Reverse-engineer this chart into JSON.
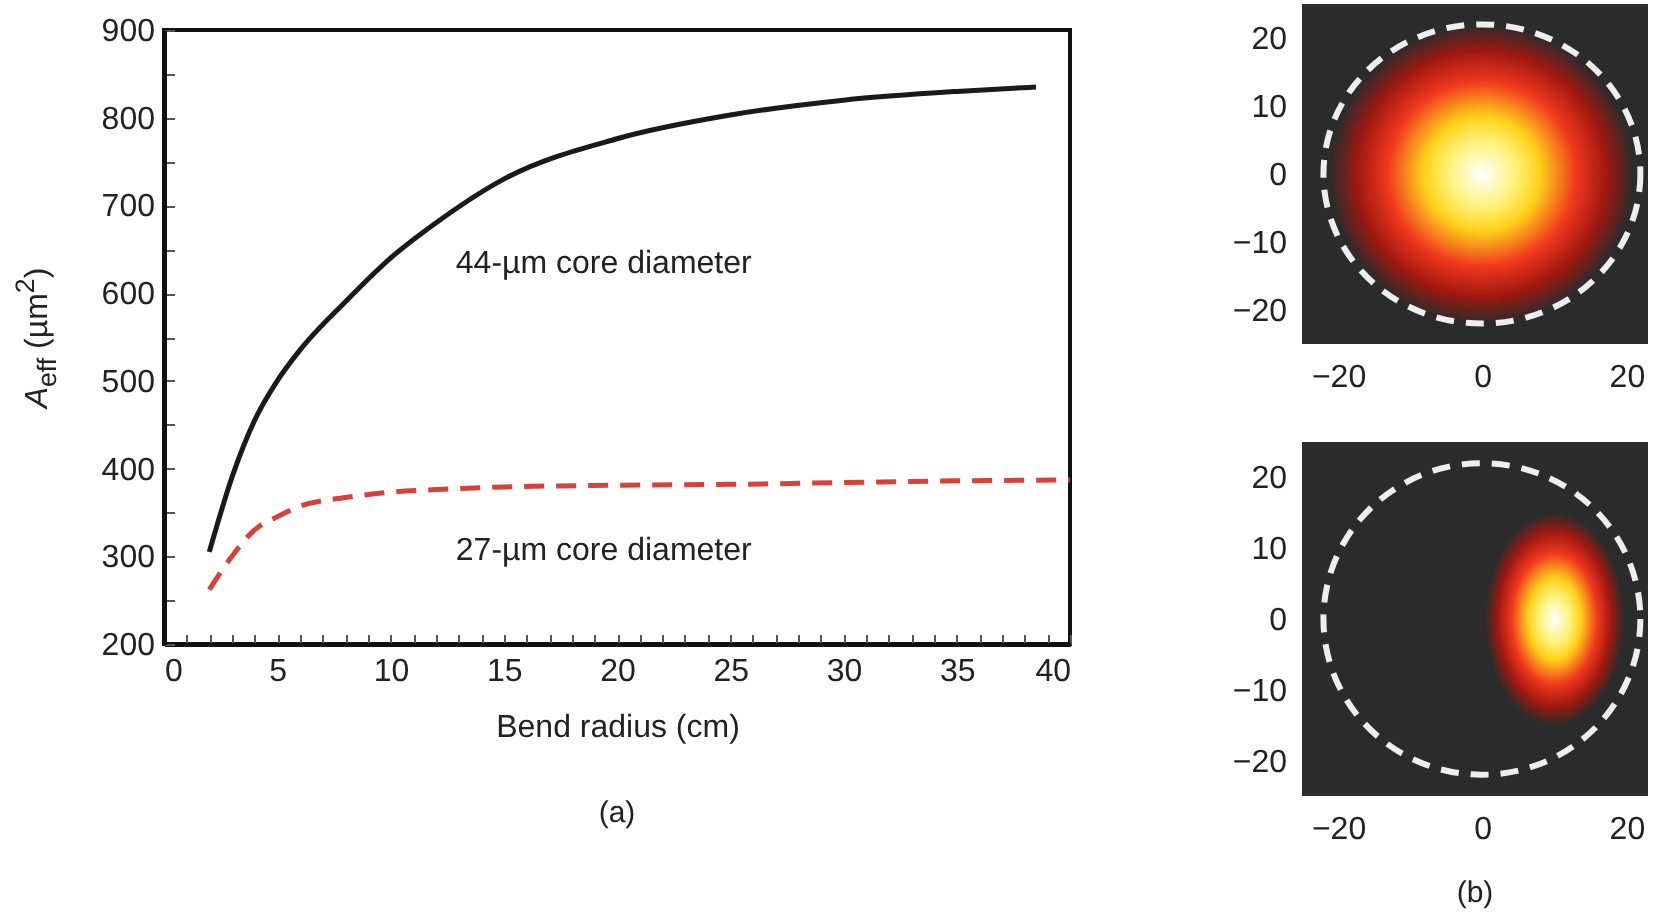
{
  "chart_data": [
    {
      "type": "line",
      "xlabel": "Bend radius (cm)",
      "ylabel": "A$_{eff}$ (µm$^{2}$)",
      "annotations": [
        "(a)"
      ],
      "xlim": [
        0,
        40
      ],
      "ylim": [
        200,
        900
      ],
      "xticks": [
        0,
        {
          "value": 1,
          "label": null
        },
        {
          "value": 2,
          "label": null
        },
        {
          "value": 3,
          "label": null
        },
        {
          "value": 4,
          "label": null
        },
        5,
        {
          "value": 6,
          "label": null
        },
        {
          "value": 7,
          "label": null
        },
        {
          "value": 8,
          "label": null
        },
        {
          "value": 9,
          "label": null
        },
        10,
        {
          "value": 11,
          "label": null
        },
        {
          "value": 12,
          "label": null
        },
        {
          "value": 13,
          "label": null
        },
        {
          "value": 14,
          "label": null
        },
        15,
        {
          "value": 16,
          "label": null
        },
        {
          "value": 17,
          "label": null
        },
        {
          "value": 18,
          "label": null
        },
        {
          "value": 19,
          "label": null
        },
        20,
        {
          "value": 21,
          "label": null
        },
        {
          "value": 22,
          "label": null
        },
        {
          "value": 23,
          "label": null
        },
        {
          "value": 24,
          "label": null
        },
        25,
        {
          "value": 26,
          "label": null
        },
        {
          "value": 27,
          "label": null
        },
        {
          "value": 28,
          "label": null
        },
        {
          "value": 29,
          "label": null
        },
        30,
        {
          "value": 31,
          "label": null
        },
        {
          "value": 32,
          "label": null
        },
        {
          "value": 33,
          "label": null
        },
        {
          "value": 34,
          "label": null
        },
        35,
        {
          "value": 36,
          "label": null
        },
        {
          "value": 37,
          "label": null
        },
        {
          "value": 38,
          "label": null
        },
        {
          "value": 39,
          "label": null
        },
        40
      ],
      "yticks": [
        200,
        {
          "value": 250,
          "label": null
        },
        300,
        {
          "value": 350,
          "label": null
        },
        400,
        {
          "value": 450,
          "label": null
        },
        500,
        {
          "value": 550,
          "label": null
        },
        600,
        {
          "value": 650,
          "label": null
        },
        700,
        {
          "value": 750,
          "label": null
        },
        800,
        {
          "value": 850,
          "label": null
        },
        900
      ],
      "grid": false,
      "legend": false,
      "marker": "none",
      "series": [
        {
          "name": "44-µm core diameter",
          "color": "#1a1a1a",
          "line_style": "solid",
          "x": [
            2,
            3,
            4,
            5,
            6,
            8,
            10,
            12,
            15,
            20,
            25,
            30,
            35,
            38.5
          ],
          "values": [
            305,
            390,
            455,
            500,
            535,
            590,
            640,
            680,
            730,
            776,
            803,
            820,
            830,
            835
          ]
        },
        {
          "name": "27-µm core diameter",
          "color": "#d9403a",
          "line_style": "dashed",
          "x": [
            2,
            3,
            4,
            5,
            6,
            8,
            10,
            12,
            15,
            20,
            25,
            30,
            35,
            40
          ],
          "values": [
            262,
            300,
            330,
            345,
            357,
            367,
            373,
            376,
            379,
            381,
            382,
            384,
            386,
            387
          ]
        }
      ]
    },
    {
      "type": "line",
      "xlim": [
        -25,
        23
      ],
      "ylim": [
        -25,
        25
      ],
      "xticks": [
        -20,
        0,
        20
      ],
      "yticks": [
        -20,
        -10,
        0,
        10,
        20
      ],
      "grid": false
    },
    {
      "type": "line",
      "xlim": [
        -25,
        23
      ],
      "ylim": [
        -25,
        25
      ],
      "xticks": [
        -20,
        0,
        20
      ],
      "yticks": [
        -20,
        -10,
        0,
        10,
        20
      ],
      "grid": false,
      "annotations": [
        "(b)"
      ]
    }
  ]
}
